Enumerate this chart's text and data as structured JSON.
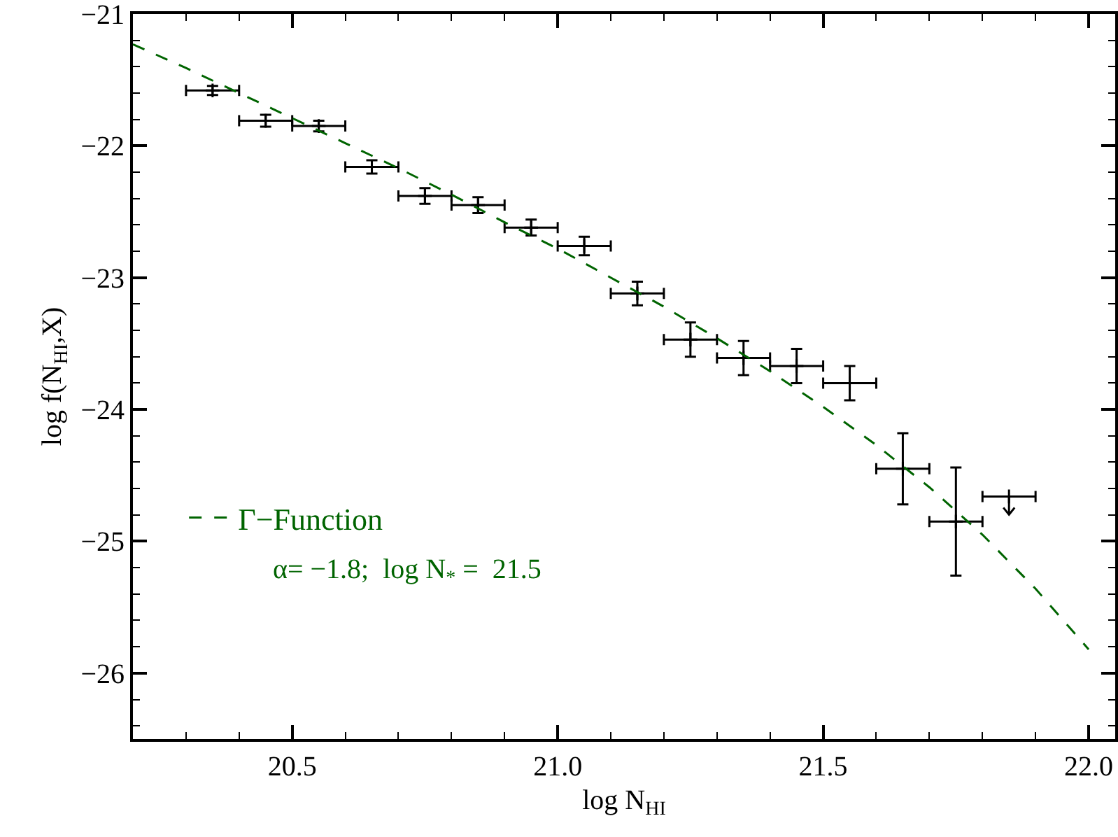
{
  "chart_data": {
    "type": "scatter",
    "xlabel": "log N$_{HI}$",
    "ylabel": "log f(N$_{HI}$,X)",
    "xlim": [
      20.2,
      22.05
    ],
    "ylim": [
      -26.5,
      -21
    ],
    "xticks": [
      {
        "value": 20.5,
        "label": "20.5"
      },
      {
        "value": 21,
        "label": "21.0"
      },
      {
        "value": 21.5,
        "label": "21.5"
      },
      {
        "value": 22,
        "label": "22.0"
      }
    ],
    "yticks": [
      {
        "value": -21,
        "label": "−21"
      },
      {
        "value": -22,
        "label": "−22"
      },
      {
        "value": -23,
        "label": "−23"
      },
      {
        "value": -24,
        "label": "−24"
      },
      {
        "value": -25,
        "label": "−25"
      },
      {
        "value": -26,
        "label": "−26"
      }
    ],
    "grid": false,
    "legend": "bottom left",
    "annotations": [
      "α= −1.8;  log N$_{*}$ =  21.5"
    ],
    "series": [
      {
        "marker": "cross",
        "color": "#000000",
        "x": [
          20.35,
          20.45,
          20.55,
          20.65,
          20.75,
          20.85,
          20.95,
          21.05,
          21.15,
          21.25,
          21.35,
          21.45,
          21.55,
          21.65,
          21.75,
          21.85
        ],
        "values": [
          -21.58,
          -21.81,
          -21.85,
          -22.16,
          -22.38,
          -22.45,
          -22.62,
          -22.76,
          -23.12,
          -23.47,
          -23.61,
          -23.67,
          -23.8,
          -24.45,
          -24.85,
          -24.66
        ],
        "errors": [
          0.035,
          0.045,
          0.04,
          0.05,
          0.06,
          0.06,
          0.06,
          0.07,
          0.09,
          0.13,
          0.13,
          0.13,
          0.13,
          0.27,
          0.41,
          null
        ],
        "xerrors": [
          0.05,
          0.05,
          0.05,
          0.05,
          0.05,
          0.05,
          0.05,
          0.05,
          0.05,
          0.05,
          0.05,
          0.05,
          0.05,
          0.05,
          0.05,
          0.05
        ]
      },
      {
        "type": "line",
        "marker": "none",
        "name": "Γ−Function",
        "color": "#006400",
        "line_style": "dashed",
        "x": [
          20.2,
          20.3,
          20.4,
          20.5,
          20.6,
          20.7,
          20.8,
          20.9,
          21.0,
          21.1,
          21.2,
          21.3,
          21.4,
          21.5,
          21.6,
          21.7,
          21.8,
          21.9,
          22.0
        ],
        "values": [
          -21.23,
          -21.41,
          -21.6,
          -21.79,
          -21.98,
          -22.17,
          -22.37,
          -22.58,
          -22.78,
          -23.0,
          -23.22,
          -23.46,
          -23.71,
          -23.98,
          -24.27,
          -24.59,
          -24.95,
          -25.36,
          -25.82
        ]
      }
    ]
  }
}
